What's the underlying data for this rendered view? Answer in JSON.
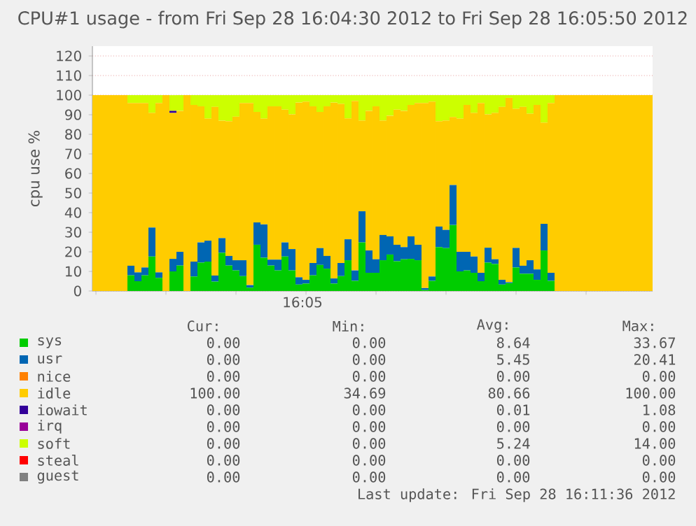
{
  "chart_data": {
    "type": "bar",
    "stacked": true,
    "title": "CPU#1 usage - from Fri Sep 28 16:04:30 2012 to Fri Sep 28 16:05:50 2012",
    "ylabel": "cpu use %",
    "categories": [
      null,
      null,
      null,
      null,
      null,
      null,
      null,
      null,
      null,
      null,
      null,
      null,
      null,
      null,
      null,
      null,
      null,
      null,
      null,
      null,
      null,
      null,
      null,
      null,
      null,
      null,
      null,
      null,
      null,
      null,
      null,
      null,
      null,
      null,
      null,
      null,
      null,
      null,
      null,
      null,
      null,
      null,
      null,
      null,
      null,
      null,
      null,
      null,
      null,
      null,
      null,
      null,
      null,
      null,
      null,
      null,
      null,
      null,
      null,
      null,
      null,
      null,
      null,
      null,
      null,
      null,
      null,
      null,
      null,
      null,
      null,
      null,
      null,
      null,
      null,
      null,
      null,
      null,
      null,
      null
    ],
    "series": [
      {
        "name": "sys",
        "color": "#00cc00",
        "values": [
          0,
          0,
          0,
          0,
          0,
          8,
          5,
          8,
          17.6,
          6.7,
          0,
          10,
          13,
          0,
          7.4,
          14.5,
          15,
          4.8,
          19.5,
          13,
          10.5,
          7.6,
          1.7,
          23.6,
          17,
          13,
          10.5,
          17.6,
          10.5,
          3.3,
          3.8,
          8,
          13.3,
          11.4,
          3.8,
          7.6,
          15.7,
          5.2,
          24.8,
          9.3,
          9.3,
          15.7,
          18.6,
          15.2,
          16.2,
          16.4,
          15.7,
          0.5,
          5.2,
          22.4,
          21.9,
          33.7,
          10,
          10.5,
          9.3,
          5,
          14.5,
          13.8,
          3.3,
          4,
          12,
          8.8,
          8.8,
          5.7,
          20.7,
          5.2,
          0,
          0,
          0,
          0,
          0,
          0,
          0,
          0,
          0,
          0,
          0,
          0,
          0,
          0
        ]
      },
      {
        "name": "usr",
        "color": "#0066b3",
        "values": [
          0,
          0,
          0,
          0,
          0,
          4.9,
          4.5,
          4,
          14.8,
          2.8,
          0,
          6.4,
          7,
          0,
          7.6,
          10.3,
          10.7,
          3.1,
          7.5,
          4.9,
          5.2,
          8.1,
          1.3,
          11.4,
          17,
          3,
          5.5,
          7.2,
          10.9,
          3.7,
          1.9,
          6.3,
          8.6,
          6.5,
          2.6,
          6.7,
          10.7,
          5.3,
          15.9,
          11.4,
          6.9,
          12.9,
          9.3,
          8.4,
          6.2,
          11.5,
          7.9,
          1,
          2.2,
          10.5,
          9.3,
          20.4,
          10,
          9.5,
          8.3,
          4.3,
          7.6,
          2.4,
          2.4,
          0.5,
          10,
          4.1,
          6.9,
          5.3,
          13.6,
          4.1,
          0,
          0,
          0,
          0,
          0,
          0,
          0,
          0,
          0,
          0,
          0,
          0,
          0,
          0
        ]
      },
      {
        "name": "nice",
        "color": "#ff8000",
        "values": [
          0,
          0,
          0,
          0,
          0,
          0,
          0,
          0,
          0,
          0,
          0,
          0,
          0,
          0,
          0,
          0,
          0,
          0,
          0,
          0,
          0,
          0,
          0,
          0,
          0,
          0,
          0,
          0,
          0,
          0,
          0,
          0,
          0,
          0,
          0,
          0,
          0,
          0,
          0,
          0,
          0,
          0,
          0,
          0,
          0,
          0,
          0,
          0,
          0,
          0,
          0,
          0,
          0,
          0,
          0,
          0,
          0,
          0,
          0,
          0,
          0,
          0,
          0,
          0,
          0,
          0,
          0,
          0,
          0,
          0,
          0,
          0,
          0,
          0,
          0,
          0,
          0,
          0,
          0,
          0
        ]
      },
      {
        "name": "idle",
        "color": "#ffcc00",
        "values": [
          100,
          100,
          100,
          100,
          100,
          83.1,
          86.5,
          84,
          58.6,
          86.5,
          100,
          74.5,
          72,
          100,
          80,
          69.5,
          62.3,
          86.1,
          60,
          68.8,
          73.3,
          80.3,
          93,
          56.4,
          54,
          78.3,
          78.3,
          67.8,
          68.8,
          89.2,
          91,
          80,
          69.5,
          76.4,
          89.8,
          81.2,
          61.7,
          86.6,
          46.4,
          71.3,
          78.1,
          58.5,
          61.6,
          69,
          69.6,
          67.1,
          72.4,
          94.5,
          89.3,
          53.8,
          55.9,
          34.7,
          68,
          75,
          73.4,
          86.7,
          68.1,
          74.8,
          88.3,
          94.1,
          71,
          81.1,
          74.8,
          84,
          51.7,
          86.7,
          100,
          100,
          100,
          100,
          100,
          100,
          100,
          100,
          100,
          100,
          100,
          100,
          100,
          100
        ]
      },
      {
        "name": "iowait",
        "color": "#330099",
        "values": [
          0,
          0,
          0,
          0,
          0,
          0,
          0,
          0,
          0,
          0,
          0,
          1.08,
          0,
          0,
          0,
          0,
          0,
          0,
          0,
          0,
          0,
          0,
          0,
          0,
          0,
          0,
          0,
          0,
          0,
          0,
          0,
          0,
          0,
          0,
          0,
          0,
          0,
          0,
          0,
          0,
          0,
          0,
          0,
          0,
          0,
          0,
          0,
          0,
          0,
          0,
          0,
          0,
          0,
          0,
          0,
          0,
          0,
          0,
          0,
          0,
          0,
          0,
          0,
          0,
          0,
          0,
          0,
          0,
          0,
          0,
          0,
          0,
          0,
          0,
          0,
          0,
          0,
          0,
          0,
          0
        ]
      },
      {
        "name": "irq",
        "color": "#990099",
        "values": [
          0,
          0,
          0,
          0,
          0,
          0,
          0,
          0,
          0,
          0,
          0,
          0,
          0,
          0,
          0,
          0,
          0,
          0,
          0,
          0,
          0,
          0,
          0,
          0,
          0,
          0,
          0,
          0,
          0,
          0,
          0,
          0,
          0,
          0,
          0,
          0,
          0,
          0,
          0,
          0,
          0,
          0,
          0,
          0,
          0,
          0,
          0,
          0,
          0,
          0,
          0,
          0,
          0,
          0,
          0,
          0,
          0,
          0,
          0,
          0,
          0,
          0,
          0,
          0,
          0,
          0,
          0,
          0,
          0,
          0,
          0,
          0,
          0,
          0,
          0,
          0,
          0,
          0,
          0,
          0
        ]
      },
      {
        "name": "soft",
        "color": "#ccff00",
        "values": [
          0,
          0,
          0,
          0,
          0,
          4,
          4,
          4,
          9,
          4,
          0,
          8,
          8,
          0,
          5,
          5.7,
          12,
          6,
          13,
          13.3,
          11,
          4,
          4,
          8.6,
          12,
          5.7,
          5.7,
          7.4,
          9.8,
          3.8,
          3.3,
          5.7,
          8.6,
          5.7,
          3.8,
          4.5,
          11.9,
          2.9,
          12.9,
          8,
          5.7,
          12.9,
          10.5,
          7.4,
          8,
          5,
          4,
          4,
          3.3,
          13.3,
          12.9,
          11.2,
          12,
          5,
          9,
          4,
          9.8,
          9,
          6,
          1.4,
          7,
          6,
          9.5,
          5,
          14,
          4,
          0,
          0,
          0,
          0,
          0,
          0,
          0,
          0,
          0,
          0,
          0,
          0,
          0,
          0
        ]
      },
      {
        "name": "steal",
        "color": "#ff0000",
        "values": [
          0,
          0,
          0,
          0,
          0,
          0,
          0,
          0,
          0,
          0,
          0,
          0,
          0,
          0,
          0,
          0,
          0,
          0,
          0,
          0,
          0,
          0,
          0,
          0,
          0,
          0,
          0,
          0,
          0,
          0,
          0,
          0,
          0,
          0,
          0,
          0,
          0,
          0,
          0,
          0,
          0,
          0,
          0,
          0,
          0,
          0,
          0,
          0,
          0,
          0,
          0,
          0,
          0,
          0,
          0,
          0,
          0,
          0,
          0,
          0,
          0,
          0,
          0,
          0,
          0,
          0,
          0,
          0,
          0,
          0,
          0,
          0,
          0,
          0,
          0,
          0,
          0,
          0,
          0,
          0
        ]
      },
      {
        "name": "guest",
        "color": "#808080",
        "values": [
          0,
          0,
          0,
          0,
          0,
          0,
          0,
          0,
          0,
          0,
          0,
          0,
          0,
          0,
          0,
          0,
          0,
          0,
          0,
          0,
          0,
          0,
          0,
          0,
          0,
          0,
          0,
          0,
          0,
          0,
          0,
          0,
          0,
          0,
          0,
          0,
          0,
          0,
          0,
          0,
          0,
          0,
          0,
          0,
          0,
          0,
          0,
          0,
          0,
          0,
          0,
          0,
          0,
          0,
          0,
          0,
          0,
          0,
          0,
          0,
          0,
          0,
          0,
          0,
          0,
          0,
          0,
          0,
          0,
          0,
          0,
          0,
          0,
          0,
          0,
          0,
          0,
          0,
          0,
          0
        ]
      }
    ],
    "ylim": [
      0,
      125
    ],
    "yticks": [
      0,
      10,
      20,
      30,
      40,
      50,
      60,
      70,
      80,
      90,
      100,
      110,
      120
    ],
    "grid": "y",
    "legend": "bottom",
    "annotations": [
      "Cur:",
      "Min:",
      "Avg:",
      "Max:",
      "0.00",
      "0.00",
      "8.64",
      "33.67",
      "0.00",
      "0.00",
      "5.45",
      "20.41",
      "0.00",
      "0.00",
      "0.00",
      "0.00",
      "100.00",
      "34.69",
      "80.66",
      "100.00",
      "0.00",
      "0.00",
      "0.01",
      "1.08",
      "0.00",
      "0.00",
      "0.00",
      "0.00",
      "0.00",
      "0.00",
      "5.24",
      "14.00",
      "0.00",
      "0.00",
      "0.00",
      "0.00",
      "0.00",
      "0.00",
      "0.00",
      "0.00",
      "Last update: Fri Sep 28 16:11:36 2012",
      "16:05"
    ]
  }
}
